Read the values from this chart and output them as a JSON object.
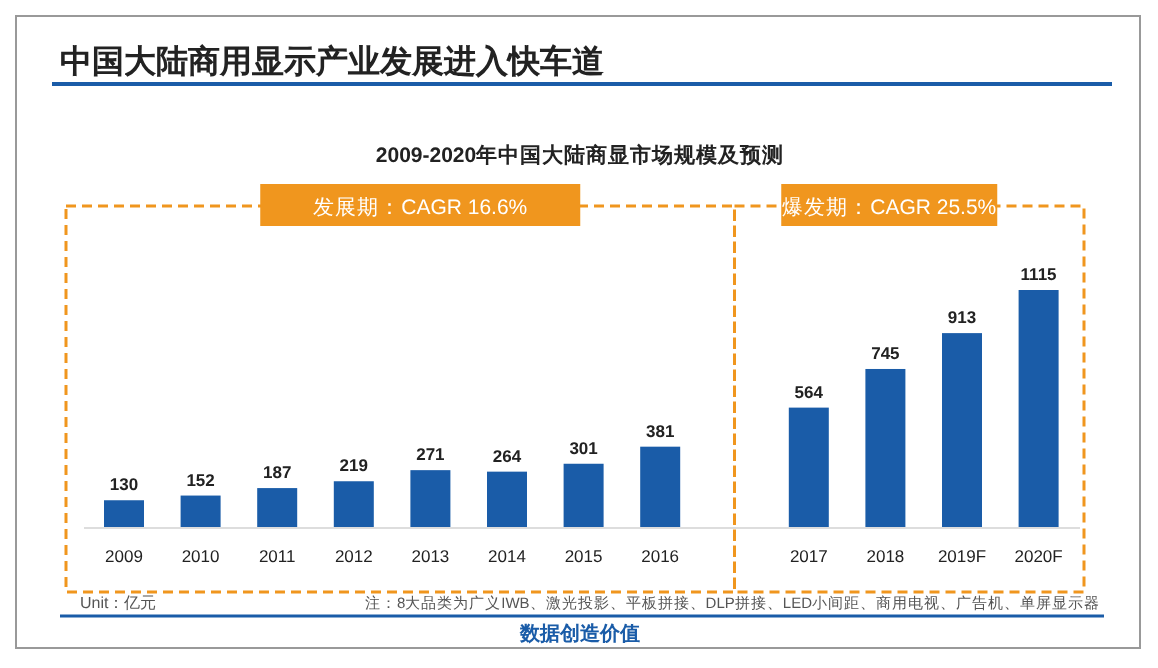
{
  "chart_data": {
    "type": "bar",
    "title": "中国大陆商用显示产业发展进入快车道",
    "subtitle": "2009-2020年中国大陆商显市场规模及预测",
    "categories": [
      "2009",
      "2010",
      "2011",
      "2012",
      "2013",
      "2014",
      "2015",
      "2016",
      "2017",
      "2018",
      "2019F",
      "2020F"
    ],
    "values": [
      130,
      152,
      187,
      219,
      271,
      264,
      301,
      381,
      564,
      745,
      913,
      1115
    ],
    "color": "#1a5ca8",
    "data_labels": true,
    "annotations": [
      "发展期：CAGR 16.6%",
      "爆发期：CAGR 25.5%",
      "Unit：亿元",
      "注：8大品类为广义IWB、激光投影、平板拼接、DLP拼接、LED小间距、商用电视、广告机、单屏显示器",
      "数据创造价值"
    ]
  }
}
